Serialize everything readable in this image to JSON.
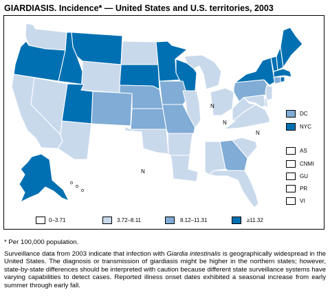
{
  "title": "GIARDIASIS. Incidence* — United States and U.S. territories, 2003",
  "colors": {
    "bin0": "#ffffff",
    "bin1": "#c9d9ec",
    "bin2": "#80acd6",
    "bin3": "#0070b2"
  },
  "legend": {
    "bins": [
      {
        "label": "0–3.71",
        "color": "#ffffff"
      },
      {
        "label": "3.72–8.11",
        "color": "#c9d9ec"
      },
      {
        "label": "8.12–11.31",
        "color": "#80acd6"
      },
      {
        "label": "≥11.32",
        "color": "#0070b2"
      }
    ],
    "special_areas": [
      {
        "label": "DC",
        "color": "#80acd6"
      },
      {
        "label": "NYC",
        "color": "#0070b2"
      }
    ],
    "territories": [
      "AS",
      "CNMI",
      "GU",
      "PR",
      "VI"
    ]
  },
  "map": {
    "not_notifiable_mark": "N",
    "not_notifiable_states": [
      "Texas",
      "Indiana",
      "Kentucky",
      "North Carolina"
    ],
    "state_bins": {
      "Washington": 1,
      "Oregon": 3,
      "Idaho": 3,
      "Montana": 3,
      "Wyoming": 1,
      "North Dakota": 1,
      "South Dakota": 3,
      "Minnesota": 3,
      "Wisconsin": 3,
      "Michigan": 1,
      "California": 1,
      "Nevada": 1,
      "Utah": 3,
      "Arizona": 1,
      "Colorado": 2,
      "New Mexico": 0,
      "Nebraska": 2,
      "Kansas": 2,
      "Oklahoma": 1,
      "Texas": 0,
      "Iowa": 2,
      "Missouri": 2,
      "Arkansas": 1,
      "Louisiana": 1,
      "Illinois": 1,
      "Indiana": 0,
      "Ohio": 1,
      "Kentucky": 0,
      "Tennessee": 0,
      "Mississippi": 0,
      "Alabama": 1,
      "Georgia": 2,
      "Florida": 1,
      "South Carolina": 1,
      "North Carolina": 0,
      "Virginia": 1,
      "West Virginia": 1,
      "Pennsylvania": 2,
      "New York": 3,
      "Vermont": 3,
      "New Hampshire": 3,
      "Maine": 3,
      "Massachusetts": 3,
      "Connecticut": 2,
      "Rhode Island": 3,
      "New Jersey": 1,
      "Delaware": 1,
      "Maryland": 1,
      "Alaska": 3,
      "Hawaii": 0
    }
  },
  "footnote": "* Per 100,000 population.",
  "summary": "Surveillance data from 2003 indicate that infection with Giardia intestinalis is geographically widespread in the United States. The diagnosis or transmission of giardiasis might be higher in the northern states; however, state-by-state differences should be interpreted with caution because different state surveillance systems have varying capabilities to detect cases. Reported illness onset dates exhibited a seasonal increase from early summer through early fall.",
  "summary_parts": {
    "before": "Surveillance data from 2003 indicate that infection with ",
    "italic": "Giardia intestinalis",
    "after": " is geographically widespread in the United States. The diagnosis or transmission of giardiasis might be higher in the northern states; however, state-by-state differences should be interpreted with caution because different state surveillance systems have varying capabilities to detect cases. Reported illness onset dates exhibited a seasonal increase from early summer through early fall."
  }
}
